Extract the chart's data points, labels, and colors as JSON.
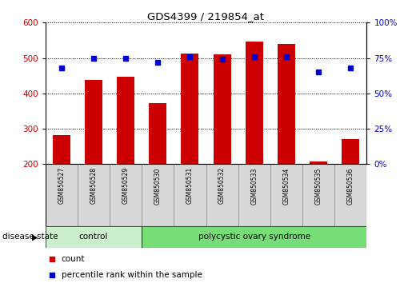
{
  "title": "GDS4399 / 219854_at",
  "samples": [
    "GSM850527",
    "GSM850528",
    "GSM850529",
    "GSM850530",
    "GSM850531",
    "GSM850532",
    "GSM850533",
    "GSM850534",
    "GSM850535",
    "GSM850536"
  ],
  "counts": [
    283,
    437,
    447,
    372,
    512,
    510,
    547,
    539,
    207,
    270
  ],
  "percentiles": [
    68,
    75,
    75,
    72,
    76,
    74,
    76,
    76,
    65,
    68
  ],
  "ylim_left": [
    200,
    600
  ],
  "ylim_right": [
    0,
    100
  ],
  "yticks_left": [
    200,
    300,
    400,
    500,
    600
  ],
  "yticks_right": [
    0,
    25,
    50,
    75,
    100
  ],
  "bar_color": "#cc0000",
  "dot_color": "#0000cc",
  "control_color": "#ccf0cc",
  "pcos_color": "#77dd77",
  "sample_bg_color": "#d8d8d8",
  "control_label": "control",
  "pcos_label": "polycystic ovary syndrome",
  "disease_state_label": "disease state",
  "legend_count": "count",
  "legend_percentile": "percentile rank within the sample",
  "n_control": 3,
  "n_pcos": 7
}
